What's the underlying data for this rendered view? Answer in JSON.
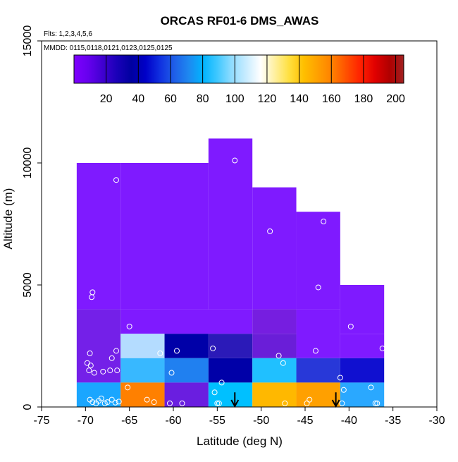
{
  "chart_data": {
    "type": "heatmap",
    "title": "ORCAS RF01-6 DMS_AWAS",
    "annotations": [
      "Flts: 1,2,3,4,5,6",
      "MMDD: 0115,0118,0121,0123,0125,0125"
    ],
    "xlabel": "Latitude (deg N)",
    "ylabel": "Altitude (m)",
    "xlim": [
      -75,
      -30
    ],
    "ylim": [
      0,
      15000
    ],
    "x_ticks": [
      -75,
      -70,
      -65,
      -60,
      -55,
      -50,
      -45,
      -40,
      -35,
      -30
    ],
    "y_ticks": [
      0,
      5000,
      10000,
      15000
    ],
    "colorbar": {
      "range": [
        0,
        205
      ],
      "ticks": [
        20,
        40,
        60,
        80,
        100,
        120,
        140,
        160,
        180,
        200
      ],
      "palette": [
        "#7f00ff",
        "#6600ee",
        "#4000d0",
        "#1a00b8",
        "#0000a0",
        "#0000c8",
        "#1030e0",
        "#1f5fe8",
        "#1e88f0",
        "#00b4ff",
        "#40c8ff",
        "#90dcff",
        "#c8ecff",
        "#ffffff",
        "#fff0a0",
        "#ffe040",
        "#ffc000",
        "#ffa000",
        "#ff8000",
        "#ff5000",
        "#ff2000",
        "#e00000",
        "#b00000",
        "#a02020"
      ]
    },
    "cells": [
      {
        "lat": [
          -71,
          -66
        ],
        "alt": [
          4000,
          10000
        ],
        "value": 2,
        "color": "#7f1aff"
      },
      {
        "lat": [
          -66,
          -56
        ],
        "alt": [
          4000,
          10000
        ],
        "value": 2,
        "color": "#7f1aff"
      },
      {
        "lat": [
          -56,
          -51
        ],
        "alt": [
          4000,
          11000
        ],
        "value": 2,
        "color": "#7f1aff"
      },
      {
        "lat": [
          -51,
          -46
        ],
        "alt": [
          4000,
          9000
        ],
        "value": 2,
        "color": "#7f1aff"
      },
      {
        "lat": [
          -46,
          -41
        ],
        "alt": [
          4000,
          8000
        ],
        "value": 2,
        "color": "#7f1aff"
      },
      {
        "lat": [
          -41,
          -36
        ],
        "alt": [
          3000,
          5000
        ],
        "value": 2,
        "color": "#7f1aff"
      },
      {
        "lat": [
          -66,
          -51
        ],
        "alt": [
          3000,
          4000
        ],
        "value": 2,
        "color": "#7f1aff"
      },
      {
        "lat": [
          -71,
          -66
        ],
        "alt": [
          1000,
          4000
        ],
        "value": 8,
        "color": "#7420e8"
      },
      {
        "lat": [
          -66,
          -61
        ],
        "alt": [
          2000,
          3000
        ],
        "value": 105,
        "color": "#b4dcff"
      },
      {
        "lat": [
          -61,
          -56
        ],
        "alt": [
          2000,
          3000
        ],
        "value": 25,
        "color": "#0000a8"
      },
      {
        "lat": [
          -56,
          -51
        ],
        "alt": [
          2000,
          3000
        ],
        "value": 15,
        "color": "#2b1ab8"
      },
      {
        "lat": [
          -51,
          -46
        ],
        "alt": [
          3000,
          4000
        ],
        "value": 5,
        "color": "#761ee0"
      },
      {
        "lat": [
          -51,
          -46
        ],
        "alt": [
          2000,
          3000
        ],
        "value": 8,
        "color": "#6a1ed8"
      },
      {
        "lat": [
          -46,
          -41
        ],
        "alt": [
          2000,
          4000
        ],
        "value": 2,
        "color": "#7f1aff"
      },
      {
        "lat": [
          -41,
          -36
        ],
        "alt": [
          2000,
          3000
        ],
        "value": 2,
        "color": "#7f1aff"
      },
      {
        "lat": [
          -66,
          -61
        ],
        "alt": [
          1000,
          2000
        ],
        "value": 88,
        "color": "#38b8ff"
      },
      {
        "lat": [
          -61,
          -56
        ],
        "alt": [
          1000,
          2000
        ],
        "value": 58,
        "color": "#2080f0"
      },
      {
        "lat": [
          -56,
          -51
        ],
        "alt": [
          1000,
          2000
        ],
        "value": 25,
        "color": "#0000a8"
      },
      {
        "lat": [
          -51,
          -46
        ],
        "alt": [
          1000,
          2000
        ],
        "value": 78,
        "color": "#20c0ff"
      },
      {
        "lat": [
          -46,
          -41
        ],
        "alt": [
          1000,
          2000
        ],
        "value": 40,
        "color": "#2838d8"
      },
      {
        "lat": [
          -41,
          -36
        ],
        "alt": [
          1000,
          2000
        ],
        "value": 30,
        "color": "#1010d0"
      },
      {
        "lat": [
          -71,
          -66
        ],
        "alt": [
          0,
          1000
        ],
        "value": 70,
        "color": "#1aa6ff"
      },
      {
        "lat": [
          -66,
          -61
        ],
        "alt": [
          0,
          1000
        ],
        "value": 162,
        "color": "#ff8000"
      },
      {
        "lat": [
          -61,
          -56
        ],
        "alt": [
          0,
          1000
        ],
        "value": 10,
        "color": "#6a1ee0"
      },
      {
        "lat": [
          -56,
          -51
        ],
        "alt": [
          0,
          1000
        ],
        "value": 80,
        "color": "#00c0ff"
      },
      {
        "lat": [
          -51,
          -46
        ],
        "alt": [
          0,
          1000
        ],
        "value": 150,
        "color": "#ffb800"
      },
      {
        "lat": [
          -46,
          -41
        ],
        "alt": [
          0,
          1000
        ],
        "value": 158,
        "color": "#ffa000"
      },
      {
        "lat": [
          -41,
          -36
        ],
        "alt": [
          0,
          1000
        ],
        "value": 72,
        "color": "#2aa8ff"
      }
    ],
    "arrows": [
      {
        "lat": -53,
        "alt_top": 600,
        "alt_bottom": 0
      },
      {
        "lat": -41.5,
        "alt_top": 600,
        "alt_bottom": 0
      }
    ],
    "samples": [
      [
        -69.5,
        300
      ],
      [
        -69.2,
        200
      ],
      [
        -68.8,
        150
      ],
      [
        -68.5,
        250
      ],
      [
        -68.2,
        350
      ],
      [
        -67.8,
        150
      ],
      [
        -67.5,
        200
      ],
      [
        -67.0,
        300
      ],
      [
        -66.6,
        180
      ],
      [
        -66.2,
        220
      ],
      [
        -69.6,
        1500
      ],
      [
        -69.4,
        1700
      ],
      [
        -69.0,
        1400
      ],
      [
        -68.0,
        1450
      ],
      [
        -67.2,
        1500
      ],
      [
        -66.4,
        1500
      ],
      [
        -69.8,
        1800
      ],
      [
        -69.5,
        2200
      ],
      [
        -67.0,
        2000
      ],
      [
        -66.5,
        2300
      ],
      [
        -69.3,
        4500
      ],
      [
        -69.2,
        4700
      ],
      [
        -66.5,
        9300
      ],
      [
        -65.0,
        3300
      ],
      [
        -65.2,
        800
      ],
      [
        -63.0,
        300
      ],
      [
        -62.2,
        200
      ],
      [
        -61.5,
        2200
      ],
      [
        -60.2,
        1400
      ],
      [
        -59.6,
        2300
      ],
      [
        -60.4,
        150
      ],
      [
        -59.0,
        150
      ],
      [
        -55.5,
        2400
      ],
      [
        -55.3,
        600
      ],
      [
        -55.0,
        150
      ],
      [
        -54.8,
        150
      ],
      [
        -54.5,
        1000
      ],
      [
        -53.0,
        10100
      ],
      [
        -49.0,
        7200
      ],
      [
        -48.0,
        2100
      ],
      [
        -47.5,
        1800
      ],
      [
        -47.3,
        150
      ],
      [
        -44.5,
        300
      ],
      [
        -43.8,
        2300
      ],
      [
        -43.5,
        4900
      ],
      [
        -42.9,
        7600
      ],
      [
        -41.0,
        1200
      ],
      [
        -40.6,
        700
      ],
      [
        -40.8,
        150
      ],
      [
        -39.8,
        3300
      ],
      [
        -37.5,
        800
      ],
      [
        -37.0,
        150
      ],
      [
        -36.8,
        150
      ],
      [
        -36.2,
        2400
      ],
      [
        -35.6,
        4900
      ],
      [
        -44.8,
        150
      ]
    ]
  }
}
